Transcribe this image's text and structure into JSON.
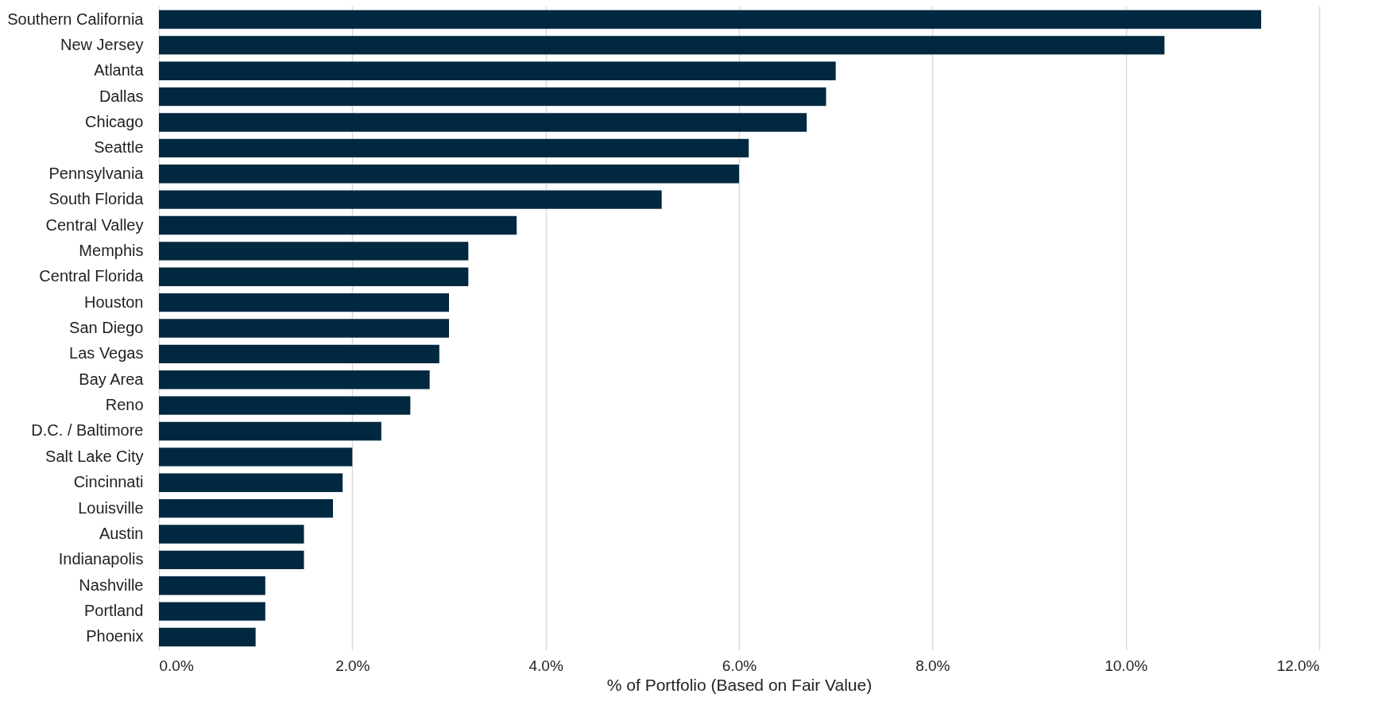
{
  "chart_data": {
    "type": "bar",
    "orientation": "horizontal",
    "xlabel": "% of Portfolio (Based on Fair Value)",
    "categories": [
      "Southern California",
      "New Jersey",
      "Atlanta",
      "Dallas",
      "Chicago",
      "Seattle",
      "Pennsylvania",
      "South Florida",
      "Central Valley",
      "Memphis",
      "Central Florida",
      "Houston",
      "San Diego",
      "Las Vegas",
      "Bay Area",
      "Reno",
      "D.C. / Baltimore",
      "Salt Lake City",
      "Cincinnati",
      "Louisville",
      "Austin",
      "Indianapolis",
      "Nashville",
      "Portland",
      "Phoenix"
    ],
    "values": [
      11.4,
      10.4,
      7.0,
      6.9,
      6.7,
      6.1,
      6.0,
      5.2,
      3.7,
      3.2,
      3.2,
      3.0,
      3.0,
      2.9,
      2.8,
      2.6,
      2.3,
      2.0,
      1.9,
      1.8,
      1.5,
      1.5,
      1.1,
      1.1,
      1.0
    ],
    "color": "#002840",
    "xlim": [
      0,
      12
    ],
    "xticks": [
      {
        "value": 0,
        "label": "0.0%"
      },
      {
        "value": 2,
        "label": "2.0%"
      },
      {
        "value": 4,
        "label": "4.0%"
      },
      {
        "value": 6,
        "label": "6.0%"
      },
      {
        "value": 8,
        "label": "8.0%"
      },
      {
        "value": 10,
        "label": "10.0%"
      },
      {
        "value": 12,
        "label": "12.0%"
      }
    ],
    "grid": "x"
  }
}
